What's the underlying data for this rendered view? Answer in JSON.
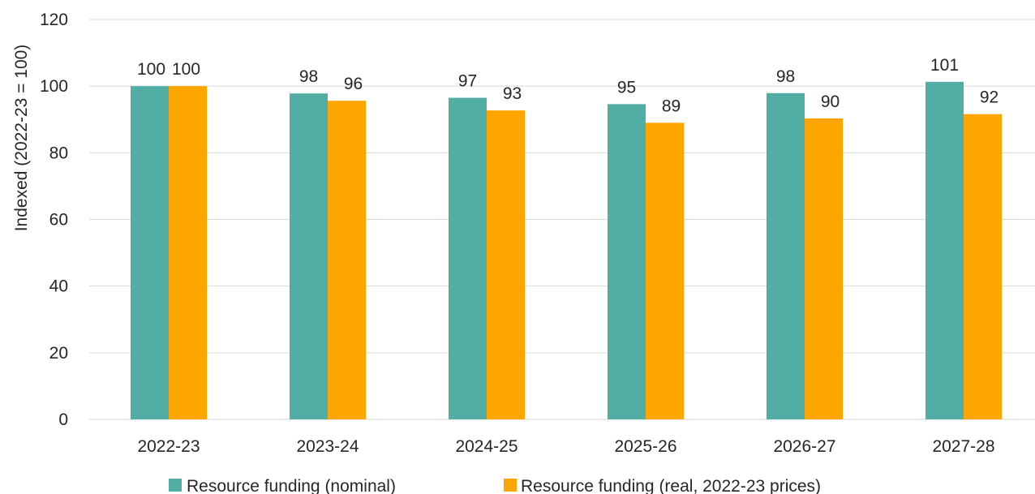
{
  "chart_data": {
    "type": "bar",
    "title": "",
    "xlabel": "",
    "ylabel": "Indexed (2022-23 = 100)",
    "ylim": [
      0,
      120
    ],
    "yticks": [
      0,
      20,
      40,
      60,
      80,
      100,
      120
    ],
    "grid": "horizontal",
    "legend_position": "bottom",
    "categories": [
      "2022-23",
      "2023-24",
      "2024-25",
      "2025-26",
      "2026-27",
      "2027-28"
    ],
    "series": [
      {
        "name": "Resource funding (nominal)",
        "color": "#52AEA4",
        "values": [
          100,
          97.8,
          96.5,
          94.6,
          97.9,
          101.3
        ],
        "labels": [
          "100",
          "98",
          "97",
          "95",
          "98",
          "101"
        ]
      },
      {
        "name": "Resource funding (real, 2022-23 prices)",
        "color": "#FFA500",
        "values": [
          100,
          95.6,
          92.7,
          89.0,
          90.3,
          91.6
        ],
        "labels": [
          "100",
          "96",
          "93",
          "89",
          "90",
          "92"
        ]
      }
    ]
  }
}
